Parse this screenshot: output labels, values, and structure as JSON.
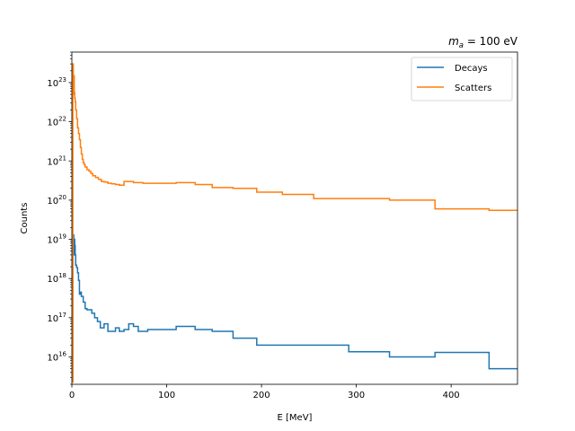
{
  "chart_data": {
    "type": "line",
    "step": true,
    "title_math": "m",
    "title_sub": "a",
    "title_rest": " =  100 eV",
    "xlabel": "E [MeV]",
    "ylabel": "Counts",
    "xlim": [
      0,
      470
    ],
    "ylim": [
      2000000000000000.0,
      6e+23
    ],
    "yscale": "log",
    "grid": false,
    "legend_position": "upper right",
    "xticks": [
      "0",
      "100",
      "200",
      "300",
      "400"
    ],
    "yticks": [
      {
        "base": "10",
        "exp": "16"
      },
      {
        "base": "10",
        "exp": "17"
      },
      {
        "base": "10",
        "exp": "18"
      },
      {
        "base": "10",
        "exp": "19"
      },
      {
        "base": "10",
        "exp": "20"
      },
      {
        "base": "10",
        "exp": "21"
      },
      {
        "base": "10",
        "exp": "22"
      },
      {
        "base": "10",
        "exp": "23"
      }
    ],
    "series": [
      {
        "name": "Decays",
        "color": "#1f77b4",
        "x": [
          0.5,
          1,
          1.5,
          2,
          2.5,
          3,
          3.5,
          4,
          5,
          6,
          7,
          8,
          9,
          10,
          12,
          14,
          16,
          18,
          21,
          24,
          27,
          30,
          34,
          38,
          42,
          46,
          50,
          55,
          60,
          65,
          70,
          75,
          80,
          90,
          100,
          110,
          115,
          125,
          130,
          148,
          170,
          195,
          292,
          335,
          383,
          440,
          470
        ],
        "y": [
          2300000000000000.0,
          6e+18,
          1.3e+19,
          4e+18,
          1e+19,
          7e+18,
          4e+18,
          2.2e+18,
          1.9e+18,
          1.4e+18,
          9e+17,
          4e+17,
          4.5e+17,
          3.5e+17,
          2.5e+17,
          1.7e+17,
          1.6e+17,
          1.6e+17,
          1.3e+17,
          1e+17,
          8e+16,
          5.5e+16,
          7e+16,
          4.5e+16,
          4.5e+16,
          5.5e+16,
          4.5e+16,
          5e+16,
          7e+16,
          6e+16,
          4.5e+16,
          4.5e+16,
          5e+16,
          5e+16,
          5e+16,
          6e+16,
          6e+16,
          6e+16,
          5e+16,
          4.5e+16,
          3e+16,
          2e+16,
          1.35e+16,
          1e+16,
          1.3e+16,
          5000000000000000.0,
          5000000000000000.0
        ]
      },
      {
        "name": "Scatters",
        "color": "#ff7f0e",
        "x": [
          0.5,
          1,
          1.5,
          2,
          2.5,
          3,
          3.5,
          4,
          5,
          6,
          7,
          8,
          9,
          10,
          11,
          12,
          13,
          14,
          16,
          18,
          20,
          22,
          25,
          28,
          31,
          34,
          38,
          42,
          46,
          50,
          55,
          60,
          65,
          75,
          90,
          100,
          110,
          125,
          130,
          148,
          170,
          195,
          222,
          255,
          292,
          335,
          383,
          440,
          470
        ],
        "y": [
          2300000000000000.0,
          3e+23,
          5e+22,
          1.5e+23,
          5.5e+22,
          4e+22,
          3.2e+22,
          2e+22,
          1.2e+22,
          7e+21,
          5e+21,
          3.5e+21,
          2.2e+21,
          1.5e+21,
          1.1e+21,
          9e+20,
          8e+20,
          7e+20,
          6e+20,
          5.5e+20,
          4.8e+20,
          4.2e+20,
          3.8e+20,
          3.4e+20,
          3e+20,
          2.9e+20,
          2.7e+20,
          2.6e+20,
          2.5e+20,
          2.4e+20,
          3e+20,
          3e+20,
          2.8e+20,
          2.7e+20,
          2.7e+20,
          2.7e+20,
          2.8e+20,
          2.8e+20,
          2.5e+20,
          2.1e+20,
          2e+20,
          1.6e+20,
          1.4e+20,
          1.1e+20,
          1.1e+20,
          1e+20,
          6e+19,
          5.5e+19,
          5.5e+19
        ]
      }
    ]
  }
}
